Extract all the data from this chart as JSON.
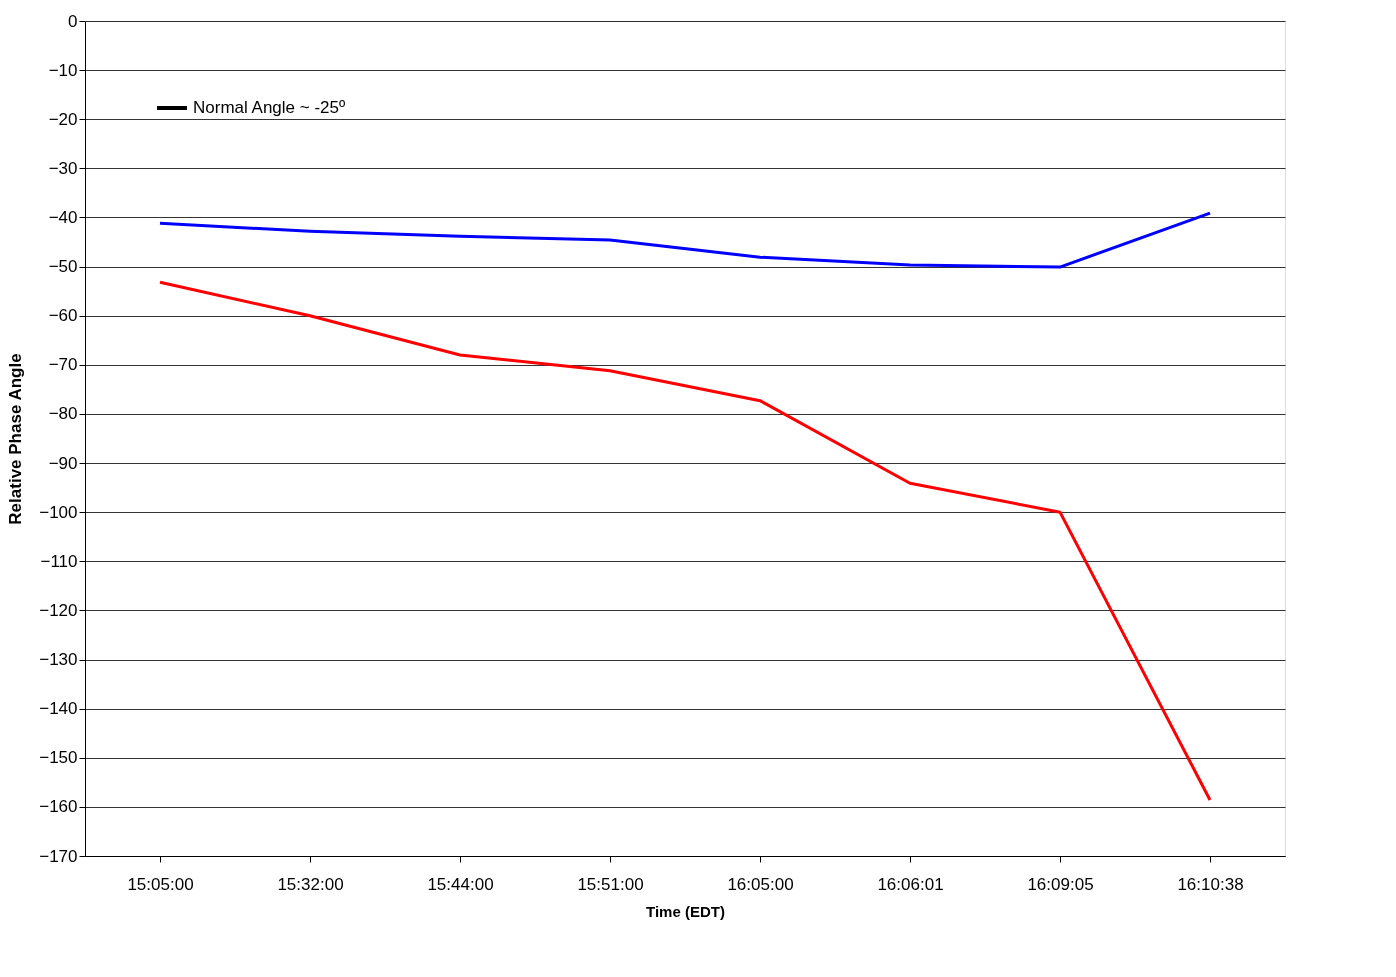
{
  "chart_data": {
    "type": "line",
    "xlabel": "Time (EDT)",
    "ylabel": "Relative Phase Angle",
    "categories": [
      "15:05:00",
      "15:32:00",
      "15:44:00",
      "15:51:00",
      "16:05:00",
      "16:06:01",
      "16:09:05",
      "16:10:38"
    ],
    "series": [
      {
        "color": "#0000ff",
        "values": [
          -41.2,
          -42.8,
          -43.8,
          -44.6,
          -48.1,
          -49.7,
          -50.1,
          -39.1
        ]
      },
      {
        "color": "#ff0000",
        "values": [
          -53.2,
          -60,
          -68,
          -71.2,
          -77.3,
          -94.1,
          -100,
          -158.6
        ]
      },
      {
        "name": "Normal Angle ~ -25º",
        "color": "#000000",
        "values": [
          null,
          null,
          null,
          null,
          null,
          null,
          null,
          null
        ]
      }
    ],
    "ylim": [
      -170,
      0
    ],
    "yticks": [
      0,
      -10,
      -20,
      -30,
      -40,
      -50,
      -60,
      -70,
      -80,
      -90,
      -100,
      -110,
      -120,
      -130,
      -140,
      -150,
      -160,
      -170
    ],
    "grid": "y",
    "legend": "top left",
    "marker": "none",
    "line_style": "solid"
  }
}
